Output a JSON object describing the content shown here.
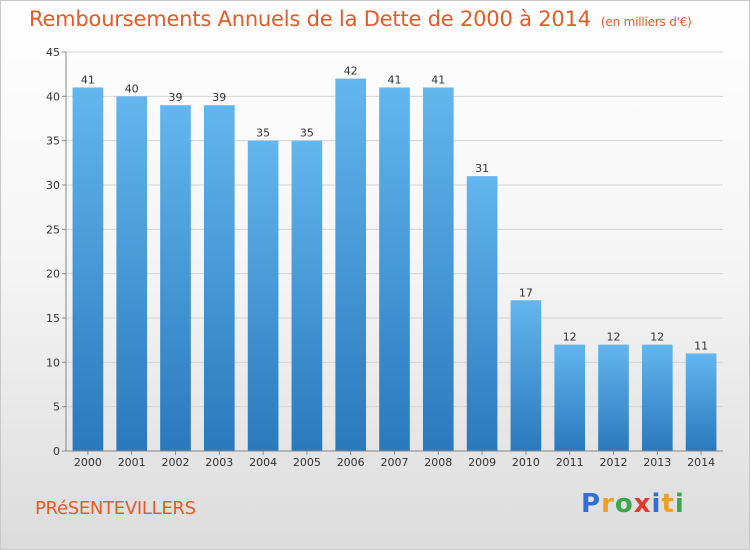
{
  "title": "Remboursements Annuels de la Dette de 2000 à 2014",
  "subtitle": "(en milliers d'€)",
  "commune": "PRéSENTEVILLERS",
  "logo": {
    "letters": [
      "P",
      "r",
      "o",
      "x",
      "i",
      "t",
      "i"
    ],
    "colors": [
      "#2f6fd6",
      "#f0a020",
      "#3aa84a",
      "#e53a2a",
      "#2f6fd6",
      "#f0a020",
      "#3aa84a"
    ]
  },
  "colors": {
    "bar_light": "#63b6ee",
    "bar_dark": "#2a79bd",
    "title": "#e55a27"
  },
  "chart_data": {
    "type": "bar",
    "categories": [
      "2000",
      "2001",
      "2002",
      "2003",
      "2004",
      "2005",
      "2006",
      "2007",
      "2008",
      "2009",
      "2010",
      "2011",
      "2012",
      "2013",
      "2014"
    ],
    "values": [
      41,
      40,
      39,
      39,
      35,
      35,
      42,
      41,
      41,
      31,
      17,
      12,
      12,
      12,
      11
    ],
    "ylim": [
      0,
      45
    ],
    "yticks": [
      0,
      5,
      10,
      15,
      20,
      25,
      30,
      35,
      40,
      45
    ],
    "grid": true
  }
}
